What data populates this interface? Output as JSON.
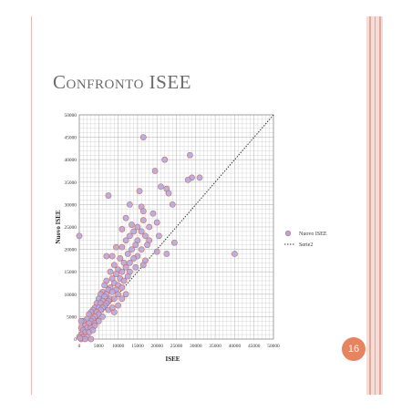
{
  "slide": {
    "title": "Confronto ISEE",
    "page_number": "16"
  },
  "colors": {
    "point_fill": "#b3a9d9",
    "point_stroke": "#c96a6a",
    "diagonal": "#3a3a3a",
    "grid": "#bdbdbd",
    "page_badge": "#e7845f"
  },
  "chart_data": {
    "type": "scatter",
    "title": "",
    "xlabel": "ISEE",
    "ylabel": "Nuovo ISEE",
    "xlim": [
      0,
      50000
    ],
    "ylim": [
      0,
      50000
    ],
    "x_ticks": [
      0,
      5000,
      10000,
      15000,
      20000,
      25000,
      30000,
      35000,
      40000,
      45000,
      50000
    ],
    "y_ticks": [
      0,
      5000,
      10000,
      15000,
      20000,
      25000,
      30000,
      35000,
      40000,
      45000,
      50000
    ],
    "grid": true,
    "legend_position": "right",
    "series": [
      {
        "name": "Nuovo ISEE",
        "kind": "markers",
        "points": [
          [
            16500,
            45000
          ],
          [
            28500,
            41000
          ],
          [
            22000,
            40000
          ],
          [
            19500,
            37500
          ],
          [
            29000,
            36000
          ],
          [
            31000,
            36000
          ],
          [
            28000,
            35500
          ],
          [
            21000,
            34000
          ],
          [
            22500,
            33500
          ],
          [
            23000,
            32500
          ],
          [
            15500,
            33000
          ],
          [
            7500,
            32000
          ],
          [
            13000,
            30000
          ],
          [
            16000,
            29500
          ],
          [
            24000,
            30000
          ],
          [
            16500,
            28500
          ],
          [
            19000,
            28000
          ],
          [
            12000,
            27000
          ],
          [
            16500,
            26500
          ],
          [
            20000,
            26000
          ],
          [
            13500,
            25500
          ],
          [
            15000,
            25000
          ],
          [
            18000,
            25000
          ],
          [
            11000,
            24500
          ],
          [
            14000,
            24000
          ],
          [
            16000,
            24000
          ],
          [
            13000,
            23000
          ],
          [
            17000,
            23000
          ],
          [
            20500,
            23000
          ],
          [
            0,
            23000
          ],
          [
            15000,
            22000
          ],
          [
            12000,
            22000
          ],
          [
            18000,
            22000
          ],
          [
            24500,
            21500
          ],
          [
            14500,
            21000
          ],
          [
            17500,
            21000
          ],
          [
            11000,
            20500
          ],
          [
            9500,
            20500
          ],
          [
            13500,
            20000
          ],
          [
            16000,
            20000
          ],
          [
            20000,
            19500
          ],
          [
            22500,
            19000
          ],
          [
            40000,
            19000
          ],
          [
            12500,
            19000
          ],
          [
            15000,
            18500
          ],
          [
            8500,
            18500
          ],
          [
            7000,
            18500
          ],
          [
            10500,
            18000
          ],
          [
            14000,
            18000
          ],
          [
            17000,
            17500
          ],
          [
            11500,
            17000
          ],
          [
            13000,
            17000
          ],
          [
            16500,
            16500
          ],
          [
            9000,
            16500
          ],
          [
            12000,
            16000
          ],
          [
            14500,
            16000
          ],
          [
            10000,
            15500
          ],
          [
            8000,
            15000
          ],
          [
            11000,
            15000
          ],
          [
            13000,
            15000
          ],
          [
            9500,
            14500
          ],
          [
            12500,
            14000
          ],
          [
            10500,
            13500
          ],
          [
            8500,
            13500
          ],
          [
            11500,
            13000
          ],
          [
            7000,
            13000
          ],
          [
            9000,
            12500
          ],
          [
            10000,
            12000
          ],
          [
            6500,
            12000
          ],
          [
            8000,
            11500
          ],
          [
            11000,
            11500
          ],
          [
            7500,
            11000
          ],
          [
            9500,
            11000
          ],
          [
            6000,
            10500
          ],
          [
            8500,
            10500
          ],
          [
            5500,
            10000
          ],
          [
            7000,
            10000
          ],
          [
            10000,
            10000
          ],
          [
            6500,
            9500
          ],
          [
            8000,
            9000
          ],
          [
            5000,
            9000
          ],
          [
            9000,
            9000
          ],
          [
            6000,
            8500
          ],
          [
            7500,
            8500
          ],
          [
            4500,
            8000
          ],
          [
            5500,
            8000
          ],
          [
            7000,
            8000
          ],
          [
            6500,
            7500
          ],
          [
            4000,
            7000
          ],
          [
            5000,
            7000
          ],
          [
            6000,
            7000
          ],
          [
            3500,
            6500
          ],
          [
            5500,
            6500
          ],
          [
            4500,
            6000
          ],
          [
            3000,
            6000
          ],
          [
            5000,
            5500
          ],
          [
            2500,
            5500
          ],
          [
            4000,
            5000
          ],
          [
            3500,
            4500
          ],
          [
            2000,
            4500
          ],
          [
            1000,
            4000
          ],
          [
            500,
            4000
          ],
          [
            3000,
            4000
          ],
          [
            2500,
            3500
          ],
          [
            1500,
            3000
          ],
          [
            4000,
            3500
          ],
          [
            2000,
            2500
          ],
          [
            500,
            2500
          ],
          [
            3000,
            2500
          ],
          [
            1000,
            2000
          ],
          [
            1500,
            1500
          ],
          [
            2500,
            1500
          ],
          [
            500,
            1000
          ],
          [
            1000,
            500
          ],
          [
            2000,
            500
          ],
          [
            0,
            500
          ],
          [
            500,
            0
          ],
          [
            1500,
            0
          ],
          [
            3000,
            0
          ],
          [
            200,
            200
          ],
          [
            9000,
            6000
          ],
          [
            10000,
            7500
          ],
          [
            11000,
            9000
          ],
          [
            12000,
            10000
          ],
          [
            7500,
            6500
          ],
          [
            6000,
            5000
          ],
          [
            8500,
            7000
          ],
          [
            4000,
            3000
          ],
          [
            3500,
            2000
          ],
          [
            5000,
            4000
          ]
        ]
      },
      {
        "name": "Serie2",
        "kind": "dotted-line",
        "points": [
          [
            0,
            0
          ],
          [
            50000,
            50000
          ]
        ]
      }
    ]
  }
}
